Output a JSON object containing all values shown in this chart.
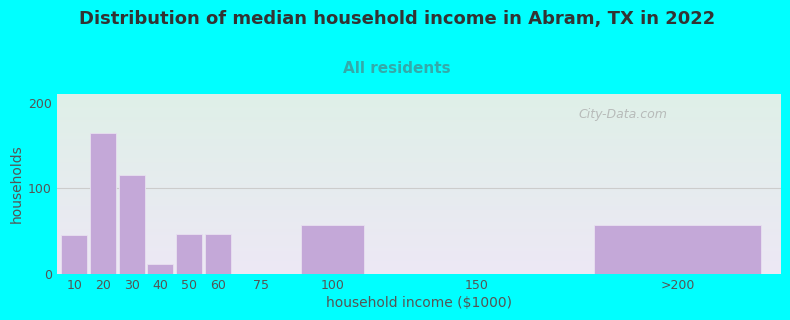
{
  "title": "Distribution of median household income in Abram, TX in 2022",
  "subtitle": "All residents",
  "xlabel": "household income ($1000)",
  "ylabel": "households",
  "title_fontsize": 13,
  "subtitle_fontsize": 11,
  "label_fontsize": 10,
  "tick_fontsize": 9,
  "background_outer": "#00FFFF",
  "background_inner_top_left": "#dff0e8",
  "background_inner_bottom_right": "#ede8f5",
  "bar_color": "#c4a8d8",
  "bar_edgecolor": "#e8e0f0",
  "grid_color": "#cccccc",
  "watermark": "City-Data.com",
  "title_color": "#333333",
  "subtitle_color": "#33aaaa",
  "bar_values": [
    45,
    165,
    115,
    12,
    47,
    47,
    0,
    57,
    0,
    57
  ],
  "bar_positions": [
    10,
    20,
    30,
    40,
    50,
    60,
    75,
    100,
    150,
    220
  ],
  "bar_widths": [
    9,
    9,
    9,
    9,
    9,
    9,
    13,
    22,
    45,
    58
  ],
  "xlim": [
    4,
    256
  ],
  "ylim": [
    0,
    210
  ],
  "yticks": [
    0,
    100,
    200
  ],
  "xticks": [
    10,
    20,
    30,
    40,
    50,
    60,
    75,
    100,
    150,
    220
  ],
  "xticklabels": [
    "10",
    "20",
    "30",
    "40",
    "50",
    "60",
    "75",
    "100",
    "150",
    ">200"
  ]
}
